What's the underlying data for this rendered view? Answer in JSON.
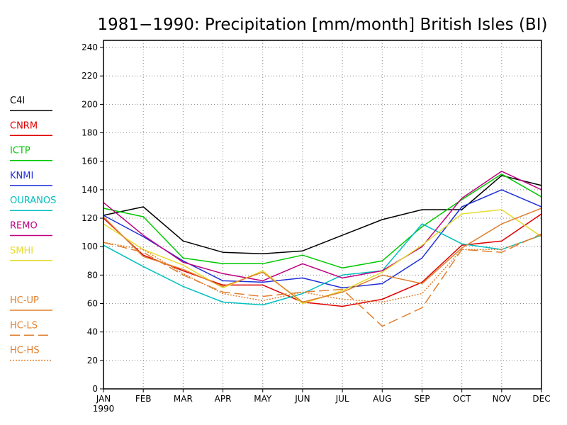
{
  "chart_data": {
    "type": "line",
    "title": "1981−1990: Precipitation [mm/month] British Isles (BI)",
    "xlabel": "",
    "ylabel": "",
    "categories": [
      "JAN",
      "FEB",
      "MAR",
      "APR",
      "MAY",
      "JUN",
      "JUL",
      "AUG",
      "SEP",
      "OCT",
      "NOV",
      "DEC"
    ],
    "x_sub_label": "1990",
    "ylim": [
      0,
      245
    ],
    "yticks": [
      0,
      20,
      40,
      60,
      80,
      100,
      120,
      140,
      160,
      180,
      200,
      220,
      240
    ],
    "grid": true,
    "legend_position": "left",
    "series": [
      {
        "name": "C4I",
        "color": "#000000",
        "dash": "solid",
        "values": [
          122,
          128,
          104,
          96,
          95,
          97,
          108,
          119,
          126,
          126,
          150,
          143
        ]
      },
      {
        "name": "CNRM",
        "color": "#e00000",
        "dash": "solid",
        "values": [
          120,
          94,
          83,
          73,
          73,
          61,
          58,
          63,
          75,
          101,
          104,
          123
        ]
      },
      {
        "name": "ICTP",
        "color": "#00c800",
        "dash": "solid",
        "values": [
          127,
          121,
          92,
          88,
          88,
          94,
          85,
          90,
          114,
          133,
          151,
          135
        ]
      },
      {
        "name": "KNMI",
        "color": "#2030d8",
        "dash": "solid",
        "values": [
          122,
          107,
          90,
          76,
          75,
          78,
          71,
          74,
          92,
          128,
          140,
          128
        ]
      },
      {
        "name": "OURANOS",
        "color": "#00c0c0",
        "dash": "solid",
        "values": [
          101,
          86,
          72,
          61,
          59,
          67,
          80,
          83,
          116,
          102,
          98,
          108
        ]
      },
      {
        "name": "REMO",
        "color": "#c00080",
        "dash": "solid",
        "values": [
          131,
          108,
          89,
          81,
          76,
          88,
          78,
          83,
          100,
          134,
          153,
          140
        ]
      },
      {
        "name": "SMHI",
        "color": "#e6dc32",
        "dash": "solid",
        "values": [
          116,
          98,
          87,
          71,
          83,
          60,
          69,
          82,
          101,
          123,
          126,
          107
        ]
      },
      {
        "name": "HC-UP",
        "color": "#e08030",
        "dash": "solid",
        "values": [
          121,
          93,
          84,
          72,
          82,
          61,
          68,
          80,
          74,
          99,
          116,
          127
        ]
      },
      {
        "name": "HC-LS",
        "color": "#e08030",
        "dash": "long",
        "values": [
          103,
          96,
          80,
          68,
          65,
          68,
          70,
          44,
          57,
          98,
          96,
          109
        ]
      },
      {
        "name": "HC-HS",
        "color": "#e08030",
        "dash": "dot",
        "values": [
          103,
          98,
          81,
          67,
          62,
          68,
          63,
          61,
          67,
          98,
          98,
          108
        ]
      }
    ]
  }
}
